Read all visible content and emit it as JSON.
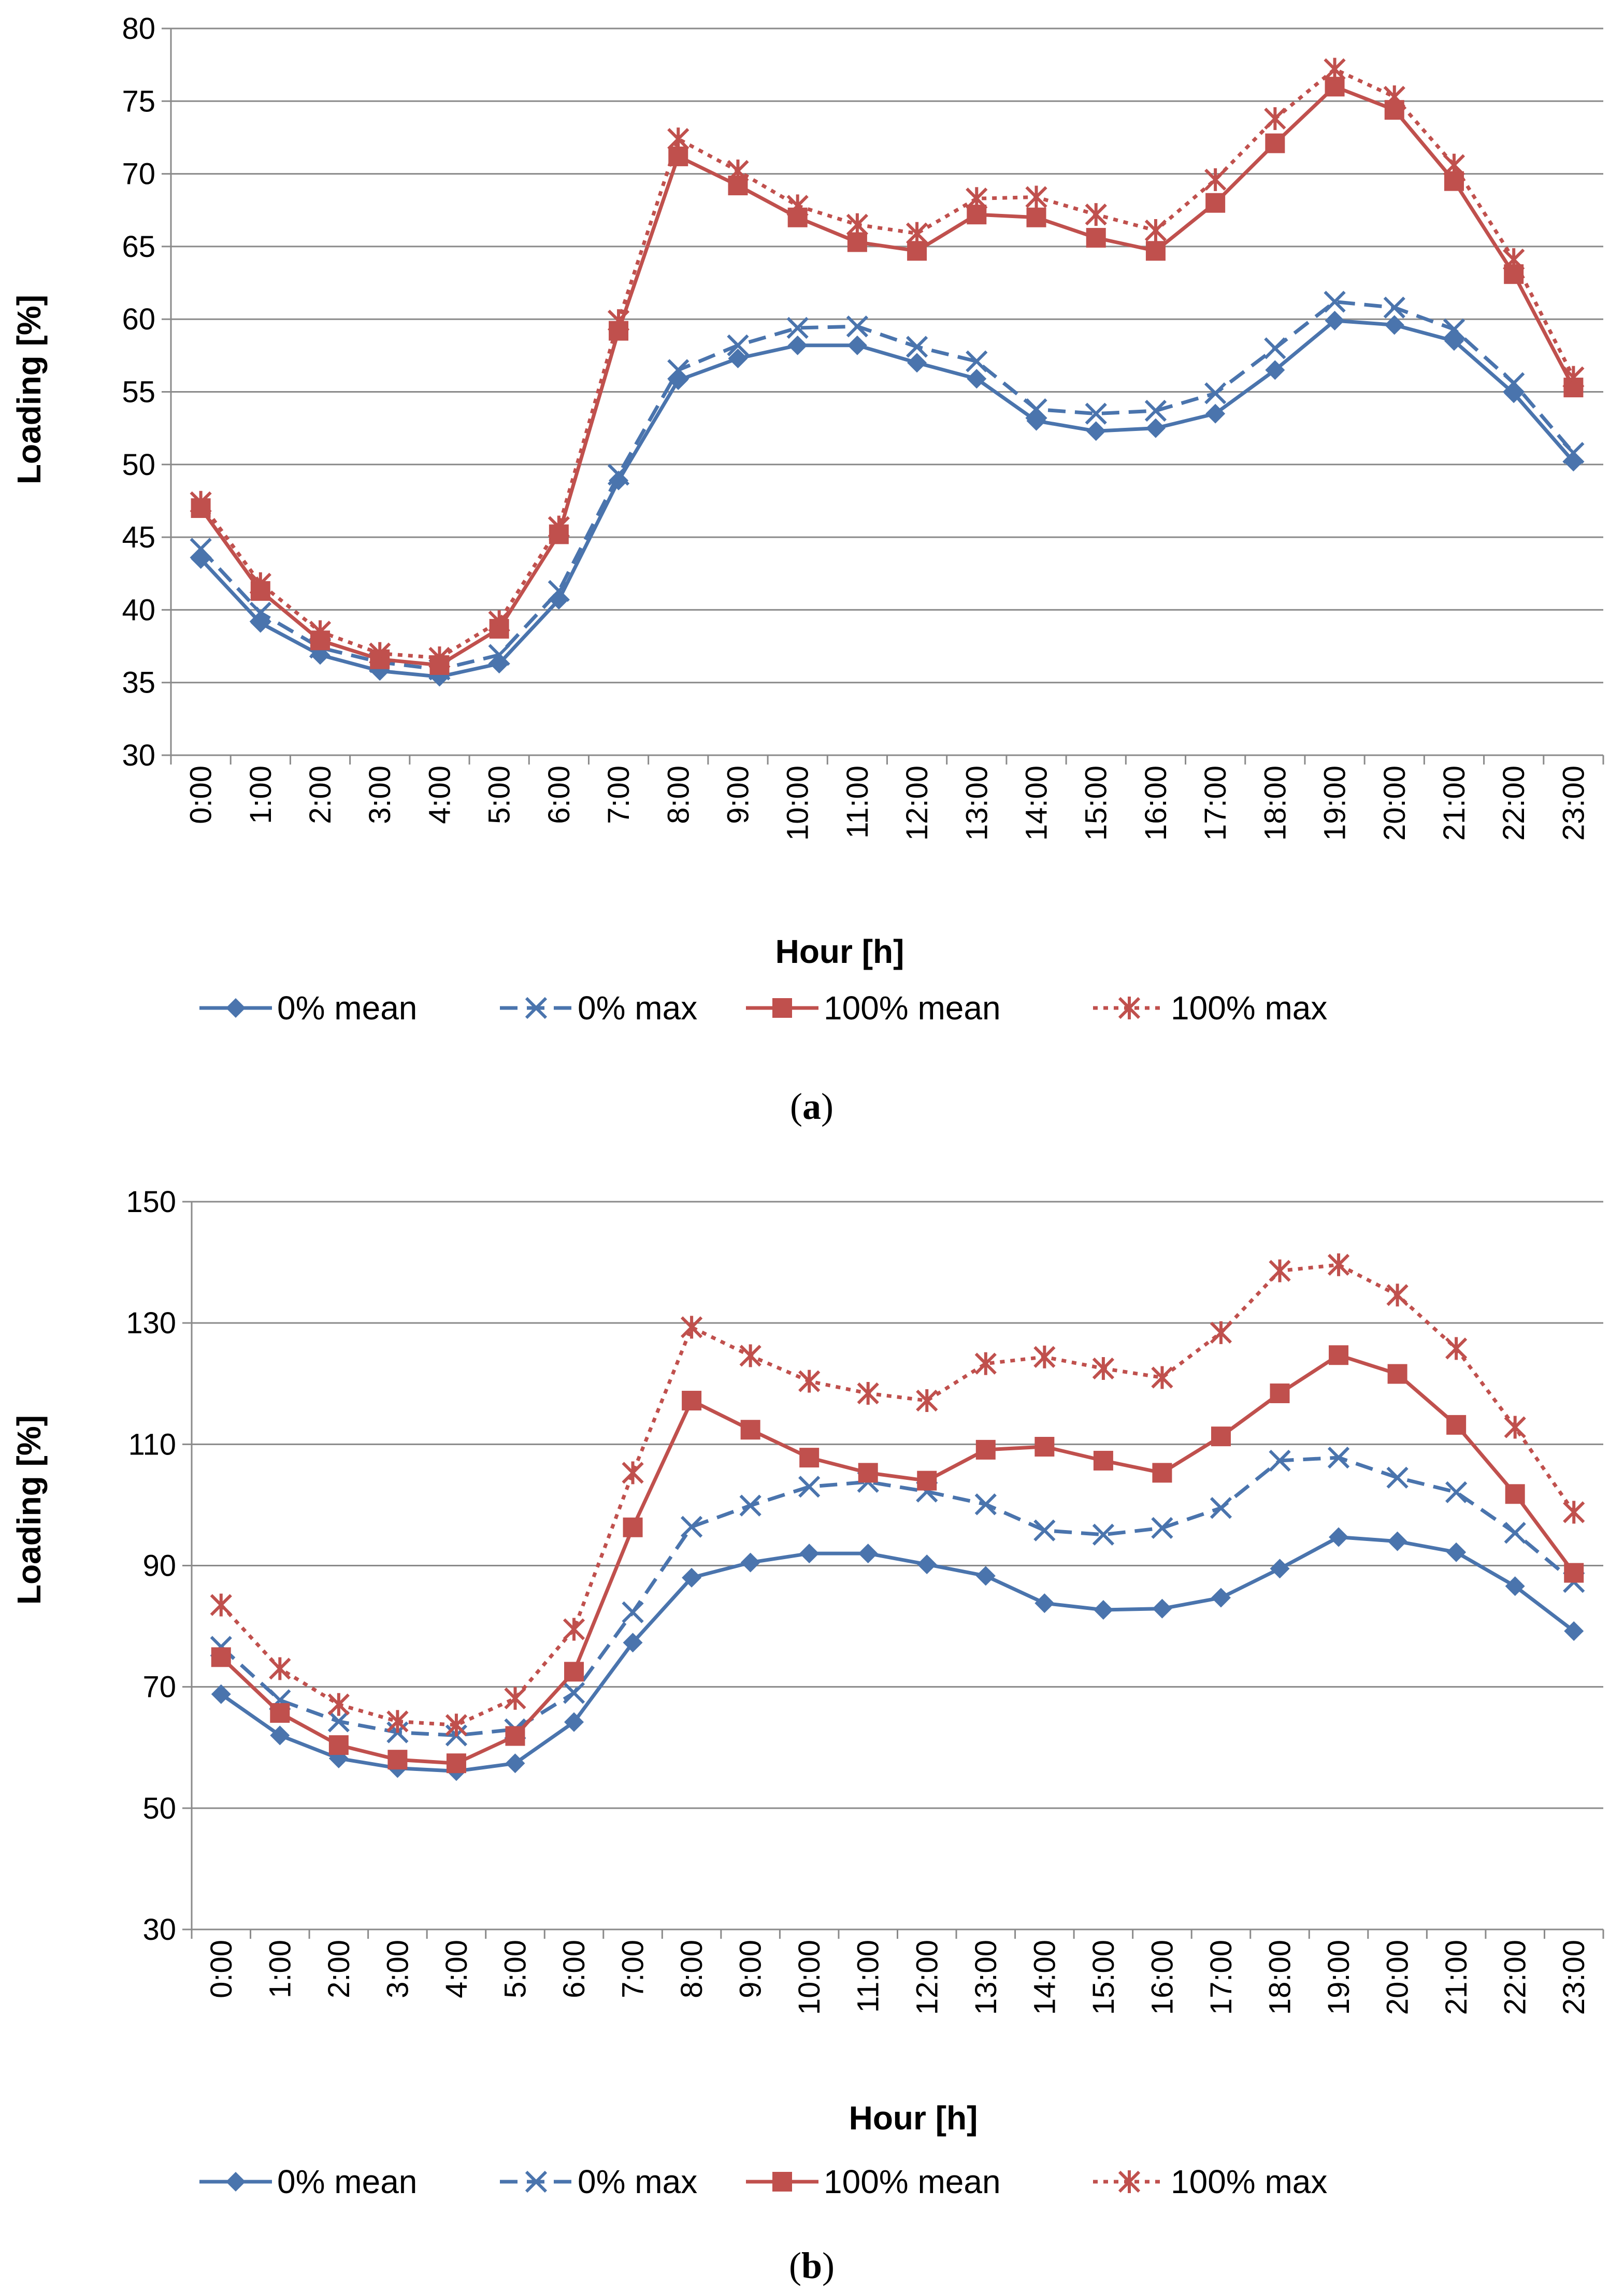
{
  "colors": {
    "blue": "#4a74ad",
    "red": "#c0504d",
    "grid": "#8a8a8a"
  },
  "series_styles": [
    {
      "name": "0% mean",
      "color": "#4a74ad",
      "dash": "",
      "marker": "diamond"
    },
    {
      "name": "0% max",
      "color": "#4a74ad",
      "dash": "dashed",
      "marker": "x"
    },
    {
      "name": "100% mean",
      "color": "#c0504d",
      "dash": "",
      "marker": "square"
    },
    {
      "name": "100% max",
      "color": "#c0504d",
      "dash": "dotted",
      "marker": "star"
    }
  ],
  "chart_data": [
    {
      "type": "line",
      "panel_label": "a",
      "title": "",
      "xlabel": "Hour [h]",
      "ylabel": "Loading [%]",
      "ylim": [
        30,
        80
      ],
      "yticks": [
        30,
        35,
        40,
        45,
        50,
        55,
        60,
        65,
        70,
        75,
        80
      ],
      "grid": true,
      "legend": "bottom",
      "categories": [
        "0:00",
        "1:00",
        "2:00",
        "3:00",
        "4:00",
        "5:00",
        "6:00",
        "7:00",
        "8:00",
        "9:00",
        "10:00",
        "11:00",
        "12:00",
        "13:00",
        "14:00",
        "15:00",
        "16:00",
        "17:00",
        "18:00",
        "19:00",
        "20:00",
        "21:00",
        "22:00",
        "23:00"
      ],
      "series": [
        {
          "name": "0% mean",
          "values": [
            43.5,
            39.1,
            36.9,
            35.8,
            35.4,
            36.3,
            40.7,
            48.9,
            55.8,
            57.3,
            58.2,
            58.2,
            57.0,
            55.9,
            53.0,
            52.3,
            52.5,
            53.5,
            56.5,
            59.9,
            59.6,
            58.5,
            54.9,
            50.2
          ]
        },
        {
          "name": "0% max",
          "values": [
            44.2,
            39.8,
            37.4,
            36.4,
            35.9,
            36.9,
            41.3,
            49.3,
            56.5,
            58.2,
            59.4,
            59.5,
            58.1,
            57.1,
            53.8,
            53.5,
            53.7,
            54.9,
            58.0,
            61.2,
            60.8,
            59.3,
            55.6,
            50.8
          ]
        },
        {
          "name": "100% mean",
          "values": [
            47.0,
            41.3,
            37.9,
            36.6,
            36.2,
            38.7,
            45.2,
            59.2,
            71.2,
            69.2,
            67.0,
            65.3,
            64.7,
            67.2,
            67.0,
            65.6,
            64.7,
            68.0,
            72.1,
            76.0,
            74.4,
            69.5,
            63.1,
            55.3
          ]
        },
        {
          "name": "100% max",
          "values": [
            47.4,
            41.8,
            38.5,
            37.0,
            36.7,
            39.2,
            45.7,
            59.9,
            72.4,
            70.2,
            67.8,
            66.5,
            65.9,
            68.3,
            68.4,
            67.2,
            66.1,
            69.6,
            73.8,
            77.2,
            75.3,
            70.6,
            64.1,
            56.0
          ]
        }
      ]
    },
    {
      "type": "line",
      "panel_label": "b",
      "title": "",
      "xlabel": "Hour [h]",
      "ylabel": "Loading [%]",
      "ylim": [
        30,
        150
      ],
      "yticks": [
        30,
        50,
        70,
        90,
        110,
        130,
        150
      ],
      "grid": true,
      "legend": "bottom",
      "categories": [
        "0:00",
        "1:00",
        "2:00",
        "3:00",
        "4:00",
        "5:00",
        "6:00",
        "7:00",
        "8:00",
        "9:00",
        "10:00",
        "11:00",
        "12:00",
        "13:00",
        "14:00",
        "15:00",
        "16:00",
        "17:00",
        "18:00",
        "19:00",
        "20:00",
        "21:00",
        "22:00",
        "23:00"
      ],
      "series": [
        {
          "name": "0% mean",
          "values": [
            68.8,
            62.0,
            58.2,
            56.6,
            56.1,
            57.4,
            64.2,
            77.3,
            88.0,
            90.5,
            92.0,
            92.0,
            90.2,
            88.3,
            83.8,
            82.7,
            82.9,
            84.7,
            89.5,
            94.7,
            94.0,
            92.2,
            86.6,
            79.2
          ]
        },
        {
          "name": "0% max",
          "values": [
            76.6,
            67.8,
            64.3,
            62.5,
            62.0,
            63.0,
            69.0,
            82.3,
            96.4,
            99.9,
            103.0,
            103.8,
            102.2,
            100.1,
            95.8,
            95.1,
            96.2,
            99.5,
            107.3,
            107.8,
            104.5,
            102.1,
            95.4,
            87.3
          ]
        },
        {
          "name": "100% mean",
          "values": [
            74.9,
            65.7,
            60.4,
            58.0,
            57.4,
            61.9,
            72.5,
            96.3,
            117.2,
            112.4,
            107.8,
            105.3,
            104.0,
            109.1,
            109.6,
            107.3,
            105.3,
            111.3,
            118.4,
            124.7,
            121.6,
            113.2,
            101.8,
            88.8
          ]
        },
        {
          "name": "100% max",
          "values": [
            83.5,
            73.0,
            67.1,
            64.3,
            63.7,
            68.1,
            79.5,
            105.3,
            129.3,
            124.6,
            120.4,
            118.4,
            117.2,
            123.3,
            124.4,
            122.5,
            121.0,
            128.4,
            138.6,
            139.6,
            134.6,
            125.8,
            112.8,
            98.8
          ]
        }
      ]
    }
  ]
}
